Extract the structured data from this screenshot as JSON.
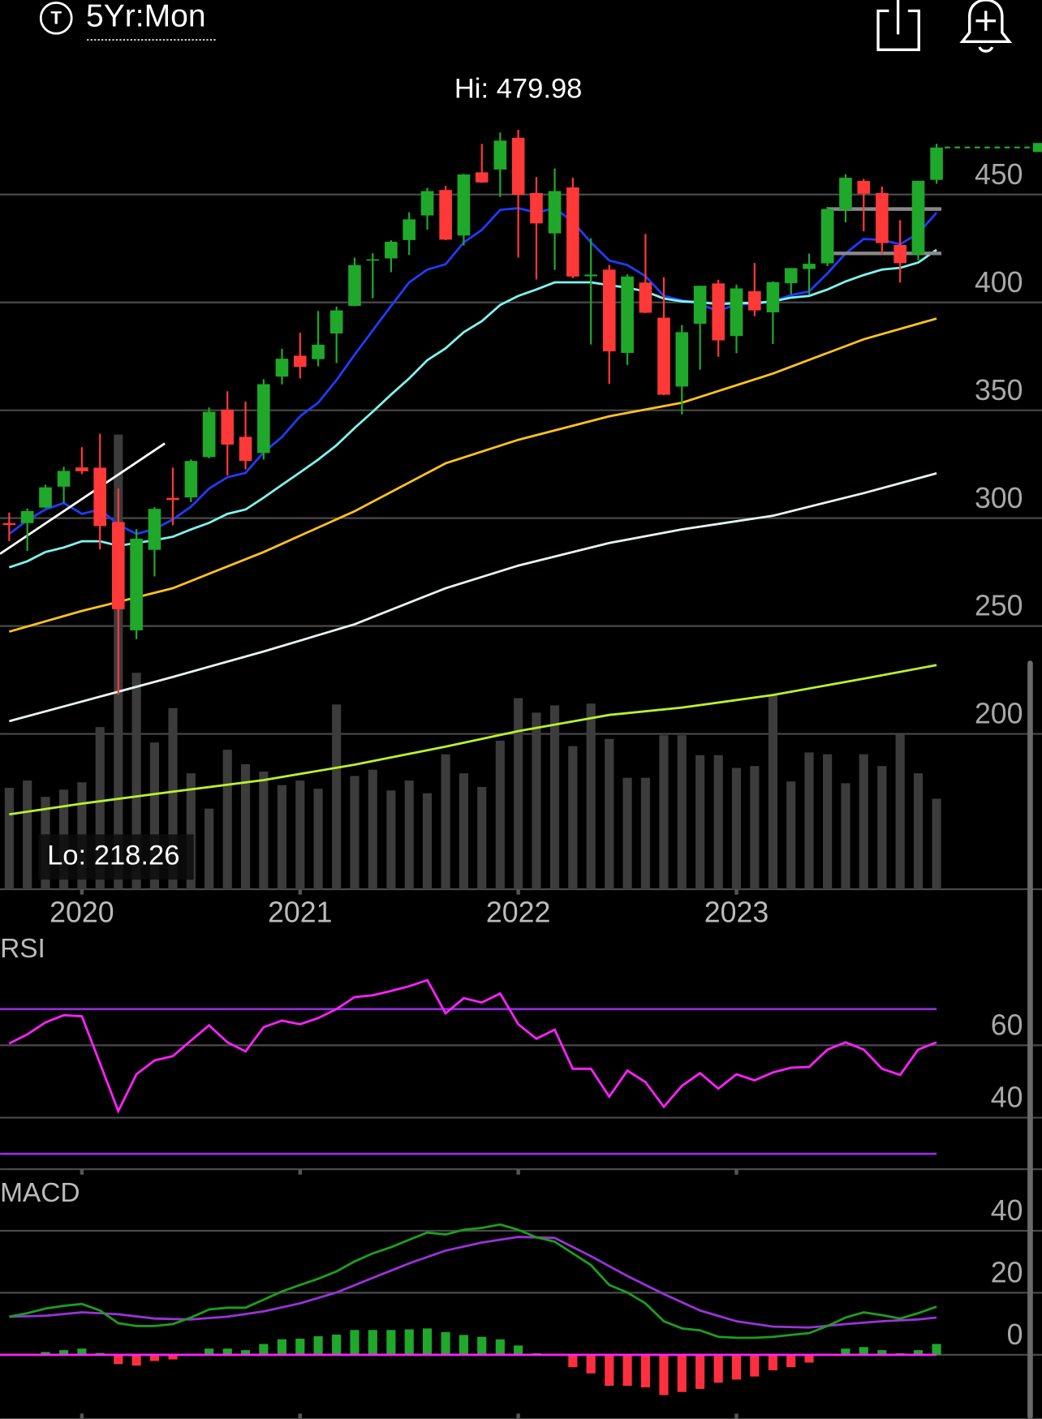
{
  "header": {
    "icon": "T",
    "timeframe": "5Yr:Mon"
  },
  "chart_data": [
    {
      "type": "candlestick",
      "x": [
        2019.667,
        2019.75,
        2019.833,
        2019.917,
        2020,
        2020.083,
        2020.167,
        2020.25,
        2020.333,
        2020.417,
        2020.5,
        2020.583,
        2020.667,
        2020.75,
        2020.833,
        2020.917,
        2021,
        2021.083,
        2021.167,
        2021.25,
        2021.333,
        2021.417,
        2021.5,
        2021.583,
        2021.667,
        2021.75,
        2021.833,
        2021.917,
        2022,
        2022.083,
        2022.167,
        2022.25,
        2022.333,
        2022.417,
        2022.5,
        2022.583,
        2022.667,
        2022.75,
        2022.833,
        2022.917,
        2023,
        2023.083,
        2023.167,
        2023.25,
        2023.333,
        2023.417,
        2023.5,
        2023.583,
        2023.667,
        2023.75,
        2023.833,
        2023.917
      ],
      "open": [
        297.7,
        297.7,
        304.9,
        314.6,
        323.5,
        323.4,
        298.2,
        248.0,
        285.3,
        309.4,
        309.6,
        328.3,
        350.3,
        337.7,
        330.2,
        365.6,
        375.3,
        373.7,
        385.6,
        398.4,
        419.4,
        420.4,
        428.9,
        440.3,
        452.1,
        431.0,
        460.3,
        461.6,
        476.3,
        450.7,
        432.0,
        453.3,
        412.1,
        415.2,
        376.6,
        409.2,
        392.9,
        361.0,
        390.1,
        408.8,
        384.4,
        405.2,
        395.4,
        408.9,
        415.5,
        418.1,
        442.9,
        456.3,
        450.7,
        426.6,
        422.3,
        456.8
      ],
      "high": [
        302.6,
        304.5,
        315.5,
        323.8,
        332.9,
        339.1,
        313.8,
        294.9,
        305.1,
        323.4,
        327.2,
        351.3,
        358.8,
        354.0,
        364.4,
        378.5,
        385.9,
        396.0,
        398.0,
        420.7,
        422.8,
        428.8,
        441.8,
        453.1,
        454.1,
        459.6,
        473.5,
        478.8,
        479.98,
        458.1,
        462.1,
        457.8,
        429.7,
        417.4,
        413.0,
        431.7,
        411.7,
        389.5,
        407.7,
        410.5,
        408.2,
        418.3,
        409.7,
        415.9,
        422.6,
        444.3,
        459.4,
        457.25,
        453.7,
        438.1,
        456.4,
        473.5
      ],
      "low": [
        289.3,
        284.8,
        304.7,
        307.1,
        320.4,
        285.5,
        218.26,
        243.9,
        273.0,
        296.7,
        307.4,
        327.7,
        319.8,
        322.6,
        327.2,
        362.0,
        364.8,
        370.4,
        371.9,
        398.2,
        401.9,
        414.0,
        422.0,
        433.7,
        428.8,
        426.4,
        455.4,
        448.9,
        420.8,
        410.6,
        415.1,
        411.2,
        380.5,
        362.2,
        371.0,
        395.0,
        357.0,
        348.1,
        368.8,
        374.8,
        376.5,
        393.6,
        380.7,
        403.8,
        403.7,
        416.8,
        437.1,
        433.0,
        422.3,
        409.2,
        419.6,
        455.0
      ],
      "close": [
        296.8,
        303.3,
        314.3,
        321.9,
        321.7,
        296.3,
        257.8,
        290.5,
        304.3,
        308.4,
        326.5,
        349.3,
        334.1,
        326.5,
        362.1,
        373.9,
        370.1,
        380.4,
        396.3,
        417.3,
        420.0,
        428.1,
        438.5,
        451.6,
        429.1,
        459.3,
        455.6,
        475.0,
        449.9,
        436.6,
        451.6,
        412.0,
        412.9,
        377.3,
        412.0,
        395.2,
        357.2,
        386.2,
        407.7,
        382.4,
        406.5,
        396.3,
        409.4,
        415.9,
        417.9,
        443.3,
        457.8,
        450.4,
        427.5,
        418.2,
        456.4,
        471.8
      ],
      "colors": {
        "up": "#1fa82a",
        "down": "#ff3838"
      },
      "volume": {
        "color": "#3c3c3c",
        "lim": [
          0,
          5000
        ],
        "values": [
          1008,
          1080,
          918,
          990,
          1062,
          1611,
          4518,
          2151,
          1458,
          1800,
          1152,
          801,
          1386,
          1242,
          1170,
          1035,
          1080,
          999,
          1836,
          1125,
          1188,
          981,
          1080,
          954,
          1341,
          1152,
          1017,
          1476,
          1899,
          1755,
          1827,
          1422,
          1845,
          1494,
          1107,
          1107,
          1530,
          1530,
          1332,
          1332,
          1206,
          1224,
          1926,
          1071,
          1359,
          1341,
          1053,
          1341,
          1224,
          1539,
          1152,
          900
        ]
      },
      "moving_averages": [
        {
          "color": "#1f3cff",
          "values": [
            292.7,
            299.0,
            304.0,
            307.0,
            302.0,
            304.0,
            297.0,
            292.7,
            295.0,
            299.4,
            305.3,
            313.7,
            319.0,
            321.0,
            330.5,
            337.6,
            347.2,
            353.5,
            364.0,
            375.8,
            387.0,
            398.4,
            409.3,
            415.2,
            417.7,
            427.8,
            433.6,
            442.9,
            443.7,
            441.6,
            443.7,
            437.4,
            427.8,
            419.4,
            417.3,
            412.2,
            403.0,
            401.0,
            399.2,
            395.9,
            399.2,
            399.2,
            400.5,
            403.4,
            405.1,
            413.5,
            422.7,
            429.4,
            429.0,
            426.9,
            432.0,
            441.6
          ]
        },
        {
          "color": "#80f4ee",
          "values": [
            277.2,
            280.0,
            284.3,
            286.4,
            289.3,
            289.3,
            287.2,
            288.5,
            289.8,
            291.4,
            294.8,
            297.8,
            302.0,
            304.0,
            309.5,
            315.4,
            321.2,
            327.1,
            333.8,
            341.8,
            349.3,
            357.3,
            364.8,
            373.2,
            378.7,
            386.2,
            391.3,
            398.8,
            403.0,
            406.0,
            409.3,
            409.3,
            409.3,
            408.0,
            406.8,
            405.1,
            401.8,
            400.5,
            400.1,
            399.2,
            399.7,
            399.7,
            400.5,
            402.2,
            403.0,
            406.0,
            409.7,
            412.7,
            415.2,
            416.0,
            418.5,
            424.4
          ]
        },
        {
          "color": "#ffc21f",
          "x": [
            2019.667,
            2020,
            2020.417,
            2020.833,
            2021.25,
            2021.667,
            2022,
            2022.417,
            2022.75,
            2023.167,
            2023.583,
            2023.917
          ],
          "values": [
            247.4,
            257.0,
            267.5,
            284.3,
            303.2,
            325.4,
            336.3,
            347.2,
            353.5,
            367.0,
            382.9,
            392.5
          ]
        },
        {
          "color": "#e6f4f4",
          "x": [
            2019.667,
            2020,
            2020.417,
            2020.833,
            2021.25,
            2021.667,
            2022,
            2022.417,
            2022.75,
            2023.167,
            2023.583,
            2023.917
          ],
          "values": [
            205.9,
            215.0,
            226.4,
            238.2,
            250.8,
            267.5,
            278.0,
            288.5,
            294.8,
            301.1,
            311.6,
            320.8
          ]
        },
        {
          "color": "#b9f22e",
          "x": [
            2019.667,
            2020,
            2020.417,
            2020.833,
            2021.25,
            2021.667,
            2022,
            2022.417,
            2022.75,
            2023.167,
            2023.583,
            2023.917
          ],
          "values": [
            162.7,
            167.7,
            173.2,
            178.6,
            185.7,
            194.1,
            201.3,
            208.8,
            212.2,
            218.0,
            225.6,
            231.9
          ]
        }
      ],
      "annotations": [
        {
          "text": "Hi: 479.98"
        },
        {
          "text": "Lo: 218.26"
        }
      ],
      "xlim": [
        2019.625,
        2024.4
      ],
      "xticks": [
        2020,
        2021,
        2022,
        2023
      ],
      "ylim": [
        128,
        490
      ],
      "yticks": [
        200,
        250,
        300,
        350,
        400,
        450
      ],
      "grid": true
    },
    {
      "type": "line",
      "title": "RSI",
      "x": [
        2019.667,
        2019.75,
        2019.833,
        2019.917,
        2020,
        2020.083,
        2020.167,
        2020.25,
        2020.333,
        2020.417,
        2020.5,
        2020.583,
        2020.667,
        2020.75,
        2020.833,
        2020.917,
        2021,
        2021.083,
        2021.167,
        2021.25,
        2021.333,
        2021.417,
        2021.5,
        2021.583,
        2021.667,
        2021.75,
        2021.833,
        2021.917,
        2022,
        2022.083,
        2022.167,
        2022.25,
        2022.333,
        2022.417,
        2022.5,
        2022.583,
        2022.667,
        2022.75,
        2022.833,
        2022.917,
        2023,
        2023.083,
        2023.167,
        2023.25,
        2023.333,
        2023.417,
        2023.5,
        2023.583,
        2023.667,
        2023.75,
        2023.833,
        2023.917
      ],
      "series": [
        {
          "color": "#ff22ff",
          "values": [
            60.5,
            63.0,
            66.3,
            68.3,
            68.0,
            55.0,
            41.8,
            52.0,
            55.8,
            57.0,
            61.3,
            65.5,
            60.8,
            58.3,
            65.0,
            66.8,
            65.8,
            67.5,
            70.0,
            73.3,
            73.8,
            75.0,
            76.3,
            78.0,
            68.8,
            73.0,
            71.8,
            74.3,
            65.8,
            61.8,
            64.3,
            53.5,
            53.5,
            45.8,
            53.0,
            49.8,
            43.0,
            48.8,
            52.3,
            48.0,
            52.0,
            50.3,
            52.5,
            53.8,
            54.0,
            58.8,
            60.8,
            58.8,
            53.5,
            51.8,
            58.8,
            60.8
          ]
        }
      ],
      "levels": [
        70,
        30
      ],
      "level_color": "#8e2fd6",
      "xlim": [
        2019.625,
        2024.4
      ],
      "xticks": [
        2020,
        2021,
        2022,
        2023
      ],
      "ylim": [
        25.75,
        88.75
      ],
      "yticks": [
        40,
        60
      ],
      "grid": true
    },
    {
      "type": "macd",
      "title": "MACD",
      "x": [
        2019.667,
        2019.75,
        2019.833,
        2019.917,
        2020,
        2020.083,
        2020.167,
        2020.25,
        2020.333,
        2020.417,
        2020.5,
        2020.583,
        2020.667,
        2020.75,
        2020.833,
        2020.917,
        2021,
        2021.083,
        2021.167,
        2021.25,
        2021.333,
        2021.417,
        2021.5,
        2021.583,
        2021.667,
        2021.75,
        2021.833,
        2021.917,
        2022,
        2022.083,
        2022.167,
        2022.25,
        2022.333,
        2022.417,
        2022.5,
        2022.583,
        2022.667,
        2022.75,
        2022.833,
        2022.917,
        2023,
        2023.083,
        2023.167,
        2023.25,
        2023.333,
        2023.417,
        2023.5,
        2023.583,
        2023.667,
        2023.75,
        2023.833,
        2023.917
      ],
      "macd": {
        "color": "#1e9e1e",
        "values": [
          12.3,
          13.4,
          14.9,
          15.8,
          16.4,
          14.3,
          10.2,
          9.3,
          9.3,
          9.9,
          12.0,
          14.6,
          15.2,
          15.2,
          17.8,
          20.4,
          22.5,
          24.5,
          26.9,
          30.1,
          32.7,
          34.7,
          37.1,
          39.4,
          38.8,
          40.3,
          40.9,
          42.0,
          40.3,
          37.9,
          36.5,
          32.7,
          28.9,
          22.5,
          20.1,
          16.6,
          10.8,
          8.5,
          7.9,
          5.8,
          5.5,
          5.5,
          5.8,
          6.4,
          7.0,
          9.3,
          12.0,
          13.7,
          12.8,
          11.7,
          13.4,
          15.5
        ]
      },
      "signal": {
        "color": "#9a33da",
        "x": [
          2019.667,
          2019.833,
          2020,
          2020.167,
          2020.333,
          2020.5,
          2020.667,
          2020.833,
          2021,
          2021.167,
          2021.333,
          2021.5,
          2021.667,
          2021.833,
          2022,
          2022.167,
          2022.333,
          2022.5,
          2022.667,
          2022.833,
          2023,
          2023.167,
          2023.333,
          2023.5,
          2023.667,
          2023.833,
          2023.917
        ],
        "values": [
          12.3,
          12.6,
          13.7,
          13.1,
          11.7,
          11.4,
          12.3,
          14.0,
          16.6,
          20.1,
          24.8,
          29.5,
          33.6,
          36.2,
          38.0,
          37.7,
          31.8,
          25.4,
          19.6,
          14.3,
          10.8,
          9.1,
          8.8,
          9.9,
          10.8,
          11.4,
          12.0
        ]
      },
      "histogram": {
        "colors": {
          "up": "#1fa82a",
          "down": "#ff2f3f"
        },
        "values": [
          0,
          0.3,
          0.9,
          1.5,
          2.0,
          0.6,
          -3.0,
          -3.5,
          -2.0,
          -1.5,
          0,
          2.0,
          2.0,
          1.5,
          3.5,
          5.0,
          5.2,
          6.0,
          6.5,
          8.0,
          8.0,
          8.0,
          8.2,
          8.5,
          7.3,
          6.4,
          5.8,
          5.0,
          3.0,
          0.5,
          0,
          -4.0,
          -6.0,
          -10.0,
          -10.0,
          -10.5,
          -13.0,
          -12.0,
          -11.0,
          -9.0,
          -8.0,
          -7.0,
          -5.0,
          -4.0,
          -2.5,
          0,
          2.0,
          2.5,
          1.5,
          0.5,
          1.5,
          3.5
        ]
      },
      "zero_line_color": "#ff22ff",
      "xlim": [
        2019.625,
        2024.4
      ],
      "xticks": [
        2020,
        2021,
        2022,
        2023
      ],
      "ylim": [
        -20.7,
        57.5
      ],
      "yticks": [
        0,
        20,
        40
      ],
      "grid": true
    }
  ]
}
